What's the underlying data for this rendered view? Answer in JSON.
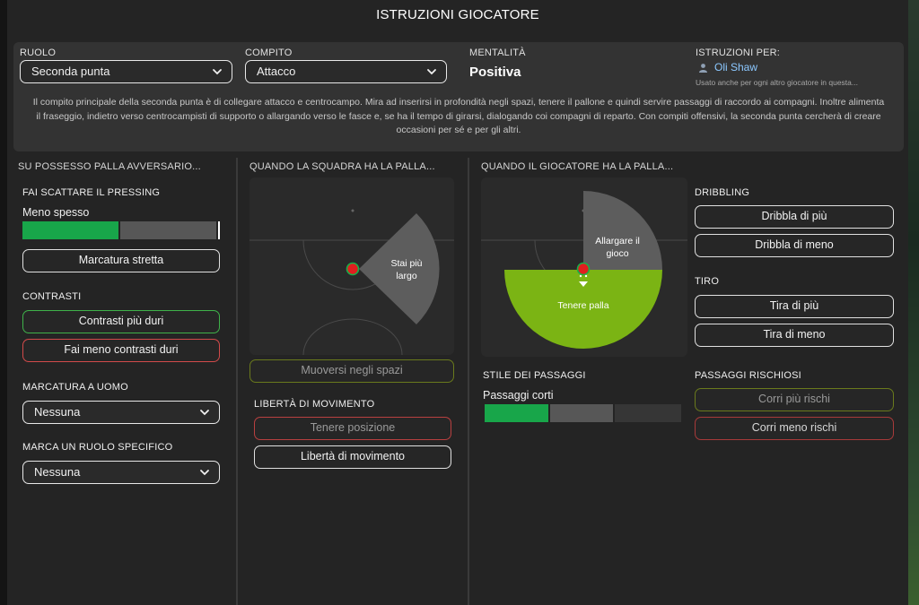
{
  "title": "ISTRUZIONI GIOCATORE",
  "header": {
    "ruolo": {
      "label": "RUOLO",
      "value": "Seconda punta"
    },
    "compito": {
      "label": "COMPITO",
      "value": "Attacco"
    },
    "mentalita": {
      "label": "MENTALITÀ",
      "value": "Positiva"
    },
    "istruzioni_per": {
      "label": "ISTRUZIONI PER:",
      "player": "Oli Shaw",
      "note": "Usato anche per ogni altro giocatore in questa..."
    },
    "description": "Il compito principale della seconda punta è di collegare attacco e centrocampo. Mira ad inserirsi in profondità negli spazi, tenere il pallone e quindi servire passaggi di raccordo ai compagni. Inoltre alimenta il fraseggio, indietro verso centrocampisti di supporto o allargando verso le fasce e, se ha il tempo di girarsi, dialogando coi compagni di reparto. Con compiti offensivi, la seconda punta cercherà di creare occasioni per sé e per gli altri."
  },
  "col1": {
    "heading": "SU POSSESSO PALLA AVVERSARIO...",
    "pressing": {
      "heading": "FAI SCATTARE IL PRESSING",
      "level_label": "Meno spesso",
      "level_fraction": 0.5
    },
    "marcatura_stretta": "Marcatura stretta",
    "contrasti": {
      "heading": "CONTRASTI",
      "duri": "Contrasti più duri",
      "meno_duri": "Fai meno contrasti duri"
    },
    "marcatura_uomo": {
      "heading": "MARCATURA A UOMO",
      "value": "Nessuna"
    },
    "marca_ruolo": {
      "heading": "MARCA UN RUOLO SPECIFICO",
      "value": "Nessuna"
    }
  },
  "col2": {
    "heading": "QUANDO LA SQUADRA HA LA PALLA...",
    "pitch_label": "Stai più largo",
    "muoversi_spazi": "Muoversi negli spazi",
    "liberta": {
      "heading": "LIBERTÀ DI MOVIMENTO",
      "tenere": "Tenere posizione",
      "liberta_btn": "Libertà di movimento"
    }
  },
  "col3": {
    "heading": "QUANDO IL GIOCATORE HA LA PALLA...",
    "pitch_label_wide": "Allargare il gioco",
    "pitch_label_hold": "Tenere palla",
    "stile": {
      "heading": "STILE DEI PASSAGGI",
      "level_label": "Passaggi corti",
      "level_fraction": 0.33
    }
  },
  "col4": {
    "dribbling": {
      "heading": "DRIBBLING",
      "piu": "Dribbla di più",
      "meno": "Dribbla di meno"
    },
    "tiro": {
      "heading": "TIRO",
      "piu": "Tira di più",
      "meno": "Tira di meno"
    },
    "passaggi": {
      "heading": "PASSAGGI RISCHIOSI",
      "piu": "Corri più rischi",
      "meno": "Corri meno rischi"
    }
  },
  "colors": {
    "accent_green": "#18a64a",
    "zone_green": "#7bb414",
    "bar_grey": "#575757",
    "player_dot": "#e01f1f"
  }
}
